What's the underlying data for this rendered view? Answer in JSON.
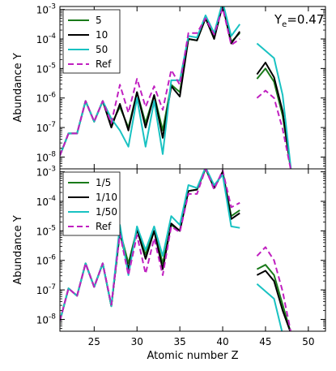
{
  "chart_data": [
    {
      "type": "line",
      "panel": "top",
      "annotation_base": "Y",
      "annotation_sub": "e",
      "annotation_rest": "=0.47",
      "xlabel": "",
      "ylabel": "Abundance Y",
      "xlim": [
        21,
        52
      ],
      "ylim_exp": [
        -8.4,
        -2.9
      ],
      "yscale": "log",
      "legend_position": "top-left",
      "yticks": [
        {
          "base": "10",
          "exp": "-8",
          "v": -8
        },
        {
          "base": "10",
          "exp": "-7",
          "v": -7
        },
        {
          "base": "10",
          "exp": "-6",
          "v": -6
        },
        {
          "base": "10",
          "exp": "-5",
          "v": -5
        },
        {
          "base": "10",
          "exp": "-4",
          "v": -4
        },
        {
          "base": "10",
          "exp": "-3",
          "v": -3
        }
      ],
      "series": [
        {
          "name": "5",
          "color": "#1a7a1a",
          "dash": false,
          "segments": [
            [
              [
                21,
                -7.95
              ],
              [
                22,
                -7.2
              ],
              [
                23,
                -7.2
              ],
              [
                24,
                -6.1
              ],
              [
                25,
                -6.8
              ],
              [
                26,
                -6.1
              ],
              [
                27,
                -6.9
              ],
              [
                28,
                -6.3
              ],
              [
                29,
                -7.0
              ],
              [
                30,
                -5.8
              ],
              [
                31,
                -6.85
              ],
              [
                32,
                -5.9
              ],
              [
                33,
                -7.1
              ],
              [
                34,
                -5.55
              ],
              [
                35,
                -5.8
              ],
              [
                36,
                -4.0
              ],
              [
                37,
                -4.05
              ],
              [
                38,
                -3.3
              ],
              [
                39,
                -3.95
              ],
              [
                40,
                -2.8
              ],
              [
                41,
                -4.1
              ],
              [
                42,
                -3.8
              ]
            ],
            [
              [
                44,
                -5.35
              ],
              [
                45,
                -5.0
              ],
              [
                46,
                -5.45
              ],
              [
                47,
                -6.6
              ],
              [
                48,
                -8.5
              ]
            ]
          ]
        },
        {
          "name": "10",
          "color": "#000000",
          "dash": false,
          "segments": [
            [
              [
                21,
                -7.95
              ],
              [
                22,
                -7.2
              ],
              [
                23,
                -7.2
              ],
              [
                24,
                -6.1
              ],
              [
                25,
                -6.8
              ],
              [
                26,
                -6.1
              ],
              [
                27,
                -7.0
              ],
              [
                28,
                -6.2
              ],
              [
                29,
                -7.1
              ],
              [
                30,
                -5.8
              ],
              [
                31,
                -7.0
              ],
              [
                32,
                -5.9
              ],
              [
                33,
                -7.35
              ],
              [
                34,
                -5.6
              ],
              [
                35,
                -5.95
              ],
              [
                36,
                -4.0
              ],
              [
                37,
                -4.05
              ],
              [
                38,
                -3.3
              ],
              [
                39,
                -4.0
              ],
              [
                40,
                -2.85
              ],
              [
                41,
                -4.15
              ],
              [
                42,
                -3.75
              ]
            ],
            [
              [
                44,
                -5.2
              ],
              [
                45,
                -4.8
              ],
              [
                46,
                -5.3
              ],
              [
                47,
                -6.45
              ],
              [
                48,
                -8.5
              ]
            ]
          ]
        },
        {
          "name": "50",
          "color": "#19c2c2",
          "dash": false,
          "segments": [
            [
              [
                21,
                -7.95
              ],
              [
                22,
                -7.2
              ],
              [
                23,
                -7.2
              ],
              [
                24,
                -6.1
              ],
              [
                25,
                -6.8
              ],
              [
                26,
                -6.1
              ],
              [
                27,
                -6.7
              ],
              [
                28,
                -7.1
              ],
              [
                29,
                -7.65
              ],
              [
                30,
                -6.0
              ],
              [
                31,
                -7.65
              ],
              [
                32,
                -6.1
              ],
              [
                33,
                -7.9
              ],
              [
                34,
                -5.4
              ],
              [
                35,
                -5.4
              ],
              [
                36,
                -3.9
              ],
              [
                37,
                -3.95
              ],
              [
                38,
                -3.2
              ],
              [
                39,
                -3.8
              ],
              [
                40,
                -2.75
              ],
              [
                41,
                -3.9
              ],
              [
                42,
                -3.5
              ]
            ],
            [
              [
                44,
                -4.15
              ],
              [
                45,
                -4.4
              ],
              [
                46,
                -4.65
              ],
              [
                47,
                -5.9
              ],
              [
                48,
                -8.5
              ]
            ]
          ]
        },
        {
          "name": "Ref",
          "color": "#c020c0",
          "dash": true,
          "segments": [
            [
              [
                21,
                -7.95
              ],
              [
                22,
                -7.2
              ],
              [
                23,
                -7.2
              ],
              [
                24,
                -6.1
              ],
              [
                25,
                -6.8
              ],
              [
                26,
                -6.1
              ],
              [
                27,
                -6.85
              ],
              [
                28,
                -5.55
              ],
              [
                29,
                -6.5
              ],
              [
                30,
                -5.35
              ],
              [
                31,
                -6.3
              ],
              [
                32,
                -5.6
              ],
              [
                33,
                -6.4
              ],
              [
                34,
                -5.05
              ],
              [
                35,
                -5.55
              ],
              [
                36,
                -3.8
              ],
              [
                37,
                -3.8
              ],
              [
                38,
                -3.3
              ],
              [
                39,
                -3.85
              ],
              [
                40,
                -2.95
              ],
              [
                41,
                -4.2
              ],
              [
                42,
                -4.0
              ]
            ],
            [
              [
                44,
                -6.0
              ],
              [
                45,
                -5.75
              ],
              [
                46,
                -6.0
              ],
              [
                47,
                -7.05
              ],
              [
                48,
                -8.5
              ]
            ]
          ]
        }
      ]
    },
    {
      "type": "line",
      "panel": "bottom",
      "xlabel": "Atomic number Z",
      "ylabel": "Abundance Y",
      "xlim": [
        21,
        52
      ],
      "ylim_exp": [
        -8.4,
        -2.9
      ],
      "yscale": "log",
      "legend_position": "top-left",
      "xticks": [
        25,
        30,
        35,
        40,
        45,
        50
      ],
      "yticks": [
        {
          "base": "10",
          "exp": "-8",
          "v": -8
        },
        {
          "base": "10",
          "exp": "-7",
          "v": -7
        },
        {
          "base": "10",
          "exp": "-6",
          "v": -6
        },
        {
          "base": "10",
          "exp": "-5",
          "v": -5
        },
        {
          "base": "10",
          "exp": "-4",
          "v": -4
        },
        {
          "base": "10",
          "exp": "-3",
          "v": -3
        }
      ],
      "series": [
        {
          "name": "1/5",
          "color": "#1a7a1a",
          "dash": false,
          "segments": [
            [
              [
                21,
                -8.05
              ],
              [
                22,
                -6.95
              ],
              [
                23,
                -7.2
              ],
              [
                24,
                -6.1
              ],
              [
                25,
                -6.9
              ],
              [
                26,
                -6.1
              ],
              [
                27,
                -7.55
              ],
              [
                28,
                -5.0
              ],
              [
                29,
                -6.1
              ],
              [
                30,
                -4.95
              ],
              [
                31,
                -5.8
              ],
              [
                32,
                -5.0
              ],
              [
                33,
                -6.1
              ],
              [
                34,
                -4.8
              ],
              [
                35,
                -5.0
              ],
              [
                36,
                -3.65
              ],
              [
                37,
                -3.6
              ],
              [
                38,
                -2.9
              ],
              [
                39,
                -3.55
              ],
              [
                40,
                -3.0
              ],
              [
                41,
                -4.5
              ],
              [
                42,
                -4.3
              ]
            ],
            [
              [
                44,
                -6.3
              ],
              [
                45,
                -6.15
              ],
              [
                46,
                -6.5
              ],
              [
                47,
                -7.5
              ],
              [
                48,
                -8.5
              ]
            ]
          ]
        },
        {
          "name": "1/10",
          "color": "#000000",
          "dash": false,
          "segments": [
            [
              [
                21,
                -8.05
              ],
              [
                22,
                -6.95
              ],
              [
                23,
                -7.2
              ],
              [
                24,
                -6.1
              ],
              [
                25,
                -6.9
              ],
              [
                26,
                -6.1
              ],
              [
                27,
                -7.55
              ],
              [
                28,
                -5.05
              ],
              [
                29,
                -6.3
              ],
              [
                30,
                -4.95
              ],
              [
                31,
                -5.95
              ],
              [
                32,
                -5.0
              ],
              [
                33,
                -6.3
              ],
              [
                34,
                -4.75
              ],
              [
                35,
                -5.0
              ],
              [
                36,
                -3.65
              ],
              [
                37,
                -3.6
              ],
              [
                38,
                -2.85
              ],
              [
                39,
                -3.55
              ],
              [
                40,
                -3.0
              ],
              [
                41,
                -4.6
              ],
              [
                42,
                -4.4
              ]
            ],
            [
              [
                44,
                -6.5
              ],
              [
                45,
                -6.35
              ],
              [
                46,
                -6.7
              ],
              [
                47,
                -7.7
              ],
              [
                48,
                -8.5
              ]
            ]
          ]
        },
        {
          "name": "1/50",
          "color": "#19c2c2",
          "dash": false,
          "segments": [
            [
              [
                21,
                -8.05
              ],
              [
                22,
                -6.95
              ],
              [
                23,
                -7.2
              ],
              [
                24,
                -6.1
              ],
              [
                25,
                -6.9
              ],
              [
                26,
                -6.1
              ],
              [
                27,
                -7.55
              ],
              [
                28,
                -4.8
              ],
              [
                29,
                -6.5
              ],
              [
                30,
                -4.85
              ],
              [
                31,
                -5.65
              ],
              [
                32,
                -4.85
              ],
              [
                33,
                -5.85
              ],
              [
                34,
                -4.5
              ],
              [
                35,
                -4.8
              ],
              [
                36,
                -3.45
              ],
              [
                37,
                -3.55
              ],
              [
                38,
                -2.85
              ],
              [
                39,
                -3.45
              ],
              [
                40,
                -3.1
              ],
              [
                41,
                -4.85
              ],
              [
                42,
                -4.9
              ]
            ],
            [
              [
                44,
                -6.8
              ],
              [
                45,
                -7.05
              ],
              [
                46,
                -7.3
              ],
              [
                47,
                -8.5
              ]
            ]
          ]
        },
        {
          "name": "Ref",
          "color": "#c020c0",
          "dash": true,
          "segments": [
            [
              [
                21,
                -8.05
              ],
              [
                22,
                -6.95
              ],
              [
                23,
                -7.2
              ],
              [
                24,
                -6.1
              ],
              [
                25,
                -6.9
              ],
              [
                26,
                -6.1
              ],
              [
                27,
                -7.5
              ],
              [
                28,
                -5.1
              ],
              [
                29,
                -6.5
              ],
              [
                30,
                -5.15
              ],
              [
                31,
                -6.45
              ],
              [
                32,
                -5.25
              ],
              [
                33,
                -6.5
              ],
              [
                34,
                -4.85
              ],
              [
                35,
                -5.05
              ],
              [
                36,
                -3.75
              ],
              [
                37,
                -3.75
              ],
              [
                38,
                -2.9
              ],
              [
                39,
                -3.6
              ],
              [
                40,
                -2.95
              ],
              [
                41,
                -4.2
              ],
              [
                42,
                -4.05
              ]
            ],
            [
              [
                44,
                -5.85
              ],
              [
                45,
                -5.55
              ],
              [
                46,
                -6.0
              ],
              [
                47,
                -7.05
              ],
              [
                48,
                -8.5
              ]
            ]
          ]
        }
      ]
    }
  ]
}
